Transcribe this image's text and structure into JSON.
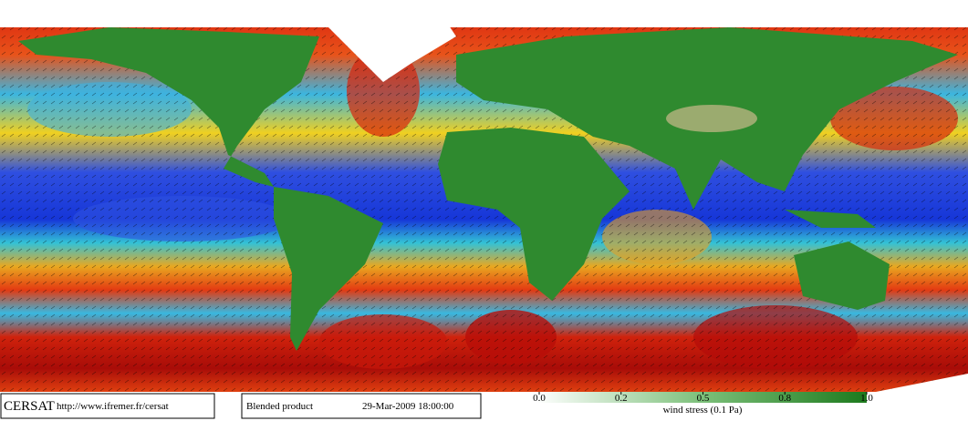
{
  "footer": {
    "logo": "CERSAT",
    "url": "http://www.ifremer.fr/cersat",
    "product": "Blended product",
    "date": "29-Mar-2009 18:00:00",
    "colorbar": {
      "ticks": [
        {
          "value": 0,
          "label": "0.0"
        },
        0.2,
        0.5,
        0.8,
        {
          "value": 1,
          "label": "1.0"
        }
      ],
      "label": "wind stress (0.1 Pa)"
    }
  }
}
